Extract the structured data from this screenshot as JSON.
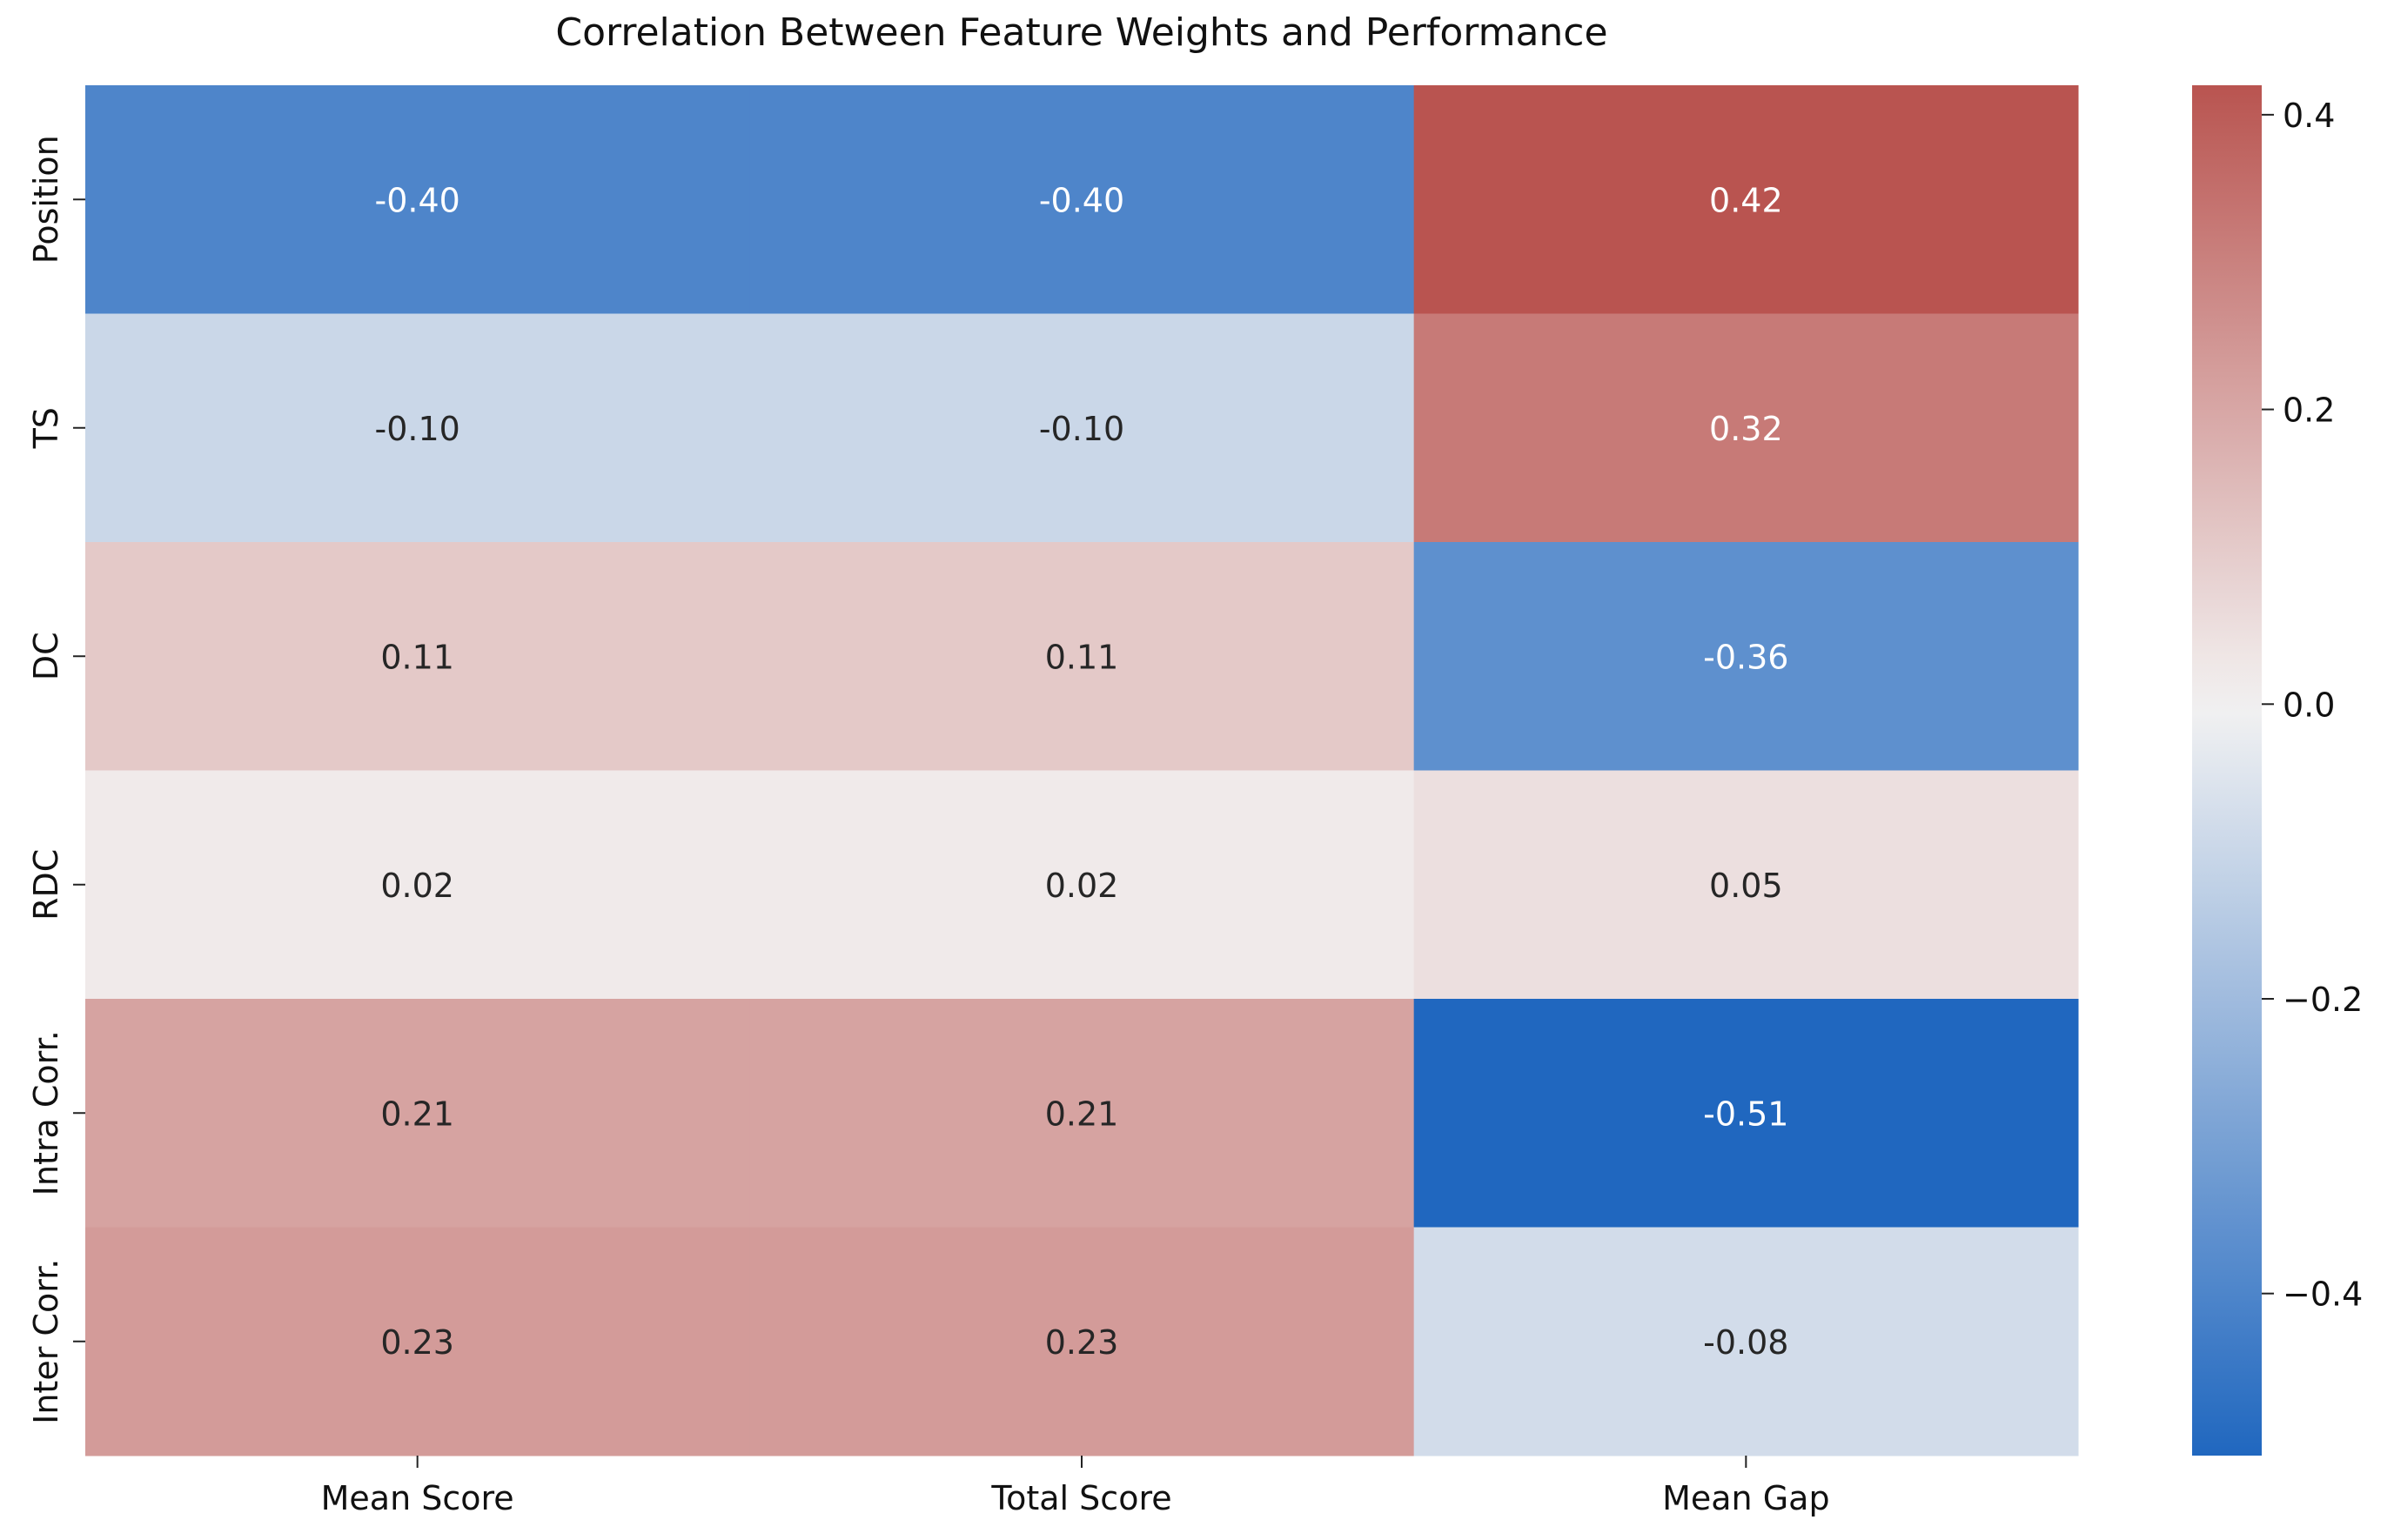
{
  "chart_data": {
    "type": "heatmap",
    "title": "Correlation Between Feature Weights and Performance",
    "xlabel": "",
    "ylabel": "",
    "columns": [
      "Mean Score",
      "Total Score",
      "Mean Gap"
    ],
    "rows": [
      "Position",
      "TS",
      "DC",
      "RDC",
      "Intra Corr.",
      "Inter Corr."
    ],
    "values": [
      [
        -0.4,
        -0.4,
        0.42
      ],
      [
        -0.1,
        -0.1,
        0.32
      ],
      [
        0.11,
        0.11,
        -0.36
      ],
      [
        0.02,
        0.02,
        0.05
      ],
      [
        0.21,
        0.21,
        -0.51
      ],
      [
        0.23,
        0.23,
        -0.08
      ]
    ],
    "value_labels": [
      [
        "-0.40",
        "-0.40",
        "0.42"
      ],
      [
        "-0.10",
        "-0.10",
        "0.32"
      ],
      [
        "0.11",
        "0.11",
        "-0.36"
      ],
      [
        "0.02",
        "0.02",
        "0.05"
      ],
      [
        "0.21",
        "0.21",
        "-0.51"
      ],
      [
        "0.23",
        "0.23",
        "-0.08"
      ]
    ],
    "colorbar": {
      "vmin": -0.51,
      "vmax": 0.42,
      "ticks": [
        0.4,
        0.2,
        0.0,
        -0.2,
        -0.4
      ],
      "tick_labels": [
        "0.4",
        "0.2",
        "0.0",
        "−0.2",
        "−0.4"
      ]
    },
    "colormap": {
      "low": "#2067bf",
      "mid": "#f3f2f2",
      "high": "#b95450"
    },
    "grid": false,
    "legend": "colorbar-right"
  }
}
